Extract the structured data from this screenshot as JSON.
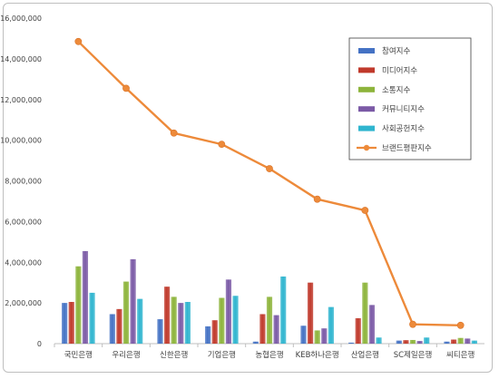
{
  "chart_data": {
    "type": "bar",
    "title": "",
    "xlabel": "",
    "ylabel": "",
    "ylim": [
      0,
      16000000
    ],
    "yticks": [
      "0",
      "2,000,000",
      "4,000,000",
      "6,000,000",
      "8,000,000",
      "10,000,000",
      "12,000,000",
      "14,000,000",
      "16,000,000"
    ],
    "categories": [
      "국민은행",
      "우리은행",
      "신한은행",
      "기업은행",
      "농협은행",
      "KEB하나은행",
      "산업은행",
      "SC제일은행",
      "씨티은행"
    ],
    "series": [
      {
        "name": "참여지수",
        "type": "bar",
        "color": "#4472C4",
        "values": [
          2000000,
          1450000,
          1200000,
          850000,
          100000,
          880000,
          50000,
          150000,
          100000
        ]
      },
      {
        "name": "미디어지수",
        "type": "bar",
        "color": "#C0392B",
        "values": [
          2050000,
          1700000,
          2800000,
          1150000,
          1450000,
          3000000,
          1250000,
          170000,
          200000
        ]
      },
      {
        "name": "소통지수",
        "type": "bar",
        "color": "#8DB43B",
        "values": [
          3800000,
          3050000,
          2300000,
          2250000,
          2300000,
          650000,
          3000000,
          180000,
          280000
        ]
      },
      {
        "name": "커뮤니티지수",
        "type": "bar",
        "color": "#7B5AA6",
        "values": [
          4550000,
          4150000,
          2000000,
          3150000,
          1400000,
          750000,
          1900000,
          130000,
          250000
        ]
      },
      {
        "name": "사회공헌지수",
        "type": "bar",
        "color": "#2FB5CF",
        "values": [
          2500000,
          2200000,
          2050000,
          2350000,
          3300000,
          1800000,
          300000,
          300000,
          150000
        ]
      },
      {
        "name": "브랜드평판지수",
        "type": "line",
        "color": "#ED8A3A",
        "values": [
          14850000,
          12550000,
          10350000,
          9800000,
          8600000,
          7100000,
          6550000,
          950000,
          900000
        ]
      }
    ],
    "grid": false,
    "legend": "top-right"
  }
}
